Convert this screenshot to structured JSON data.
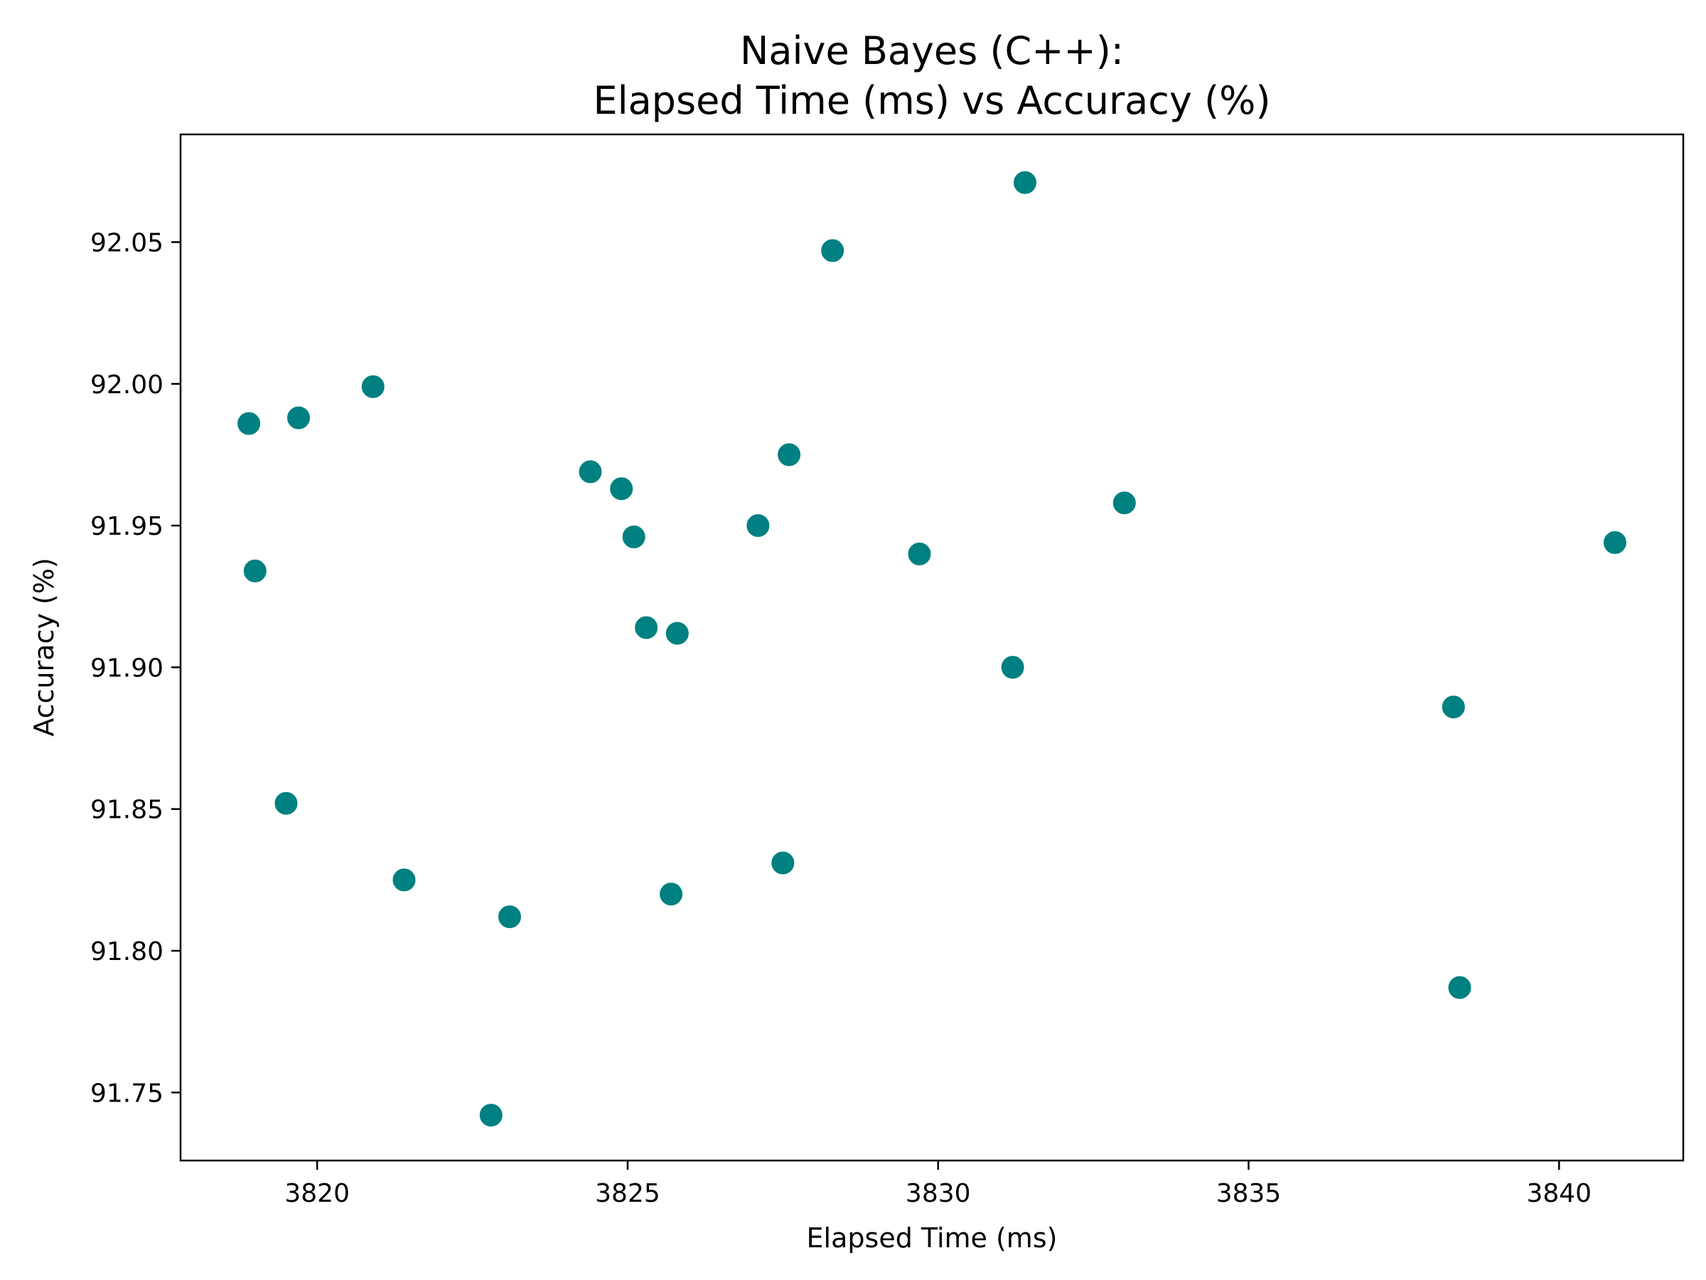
{
  "chart_data": {
    "type": "scatter",
    "title_lines": [
      "Naive Bayes (C++):",
      "Elapsed Time (ms) vs Accuracy (%)"
    ],
    "xlabel": "Elapsed Time (ms)",
    "ylabel": "Accuracy (%)",
    "xlim": [
      3817.8,
      3842.0
    ],
    "ylim": [
      91.726,
      92.088
    ],
    "xticks": [
      3820,
      3825,
      3830,
      3835,
      3840
    ],
    "xtick_labels": [
      "3820",
      "3825",
      "3830",
      "3835",
      "3840"
    ],
    "yticks": [
      91.75,
      91.8,
      91.85,
      91.9,
      91.95,
      92.0,
      92.05
    ],
    "ytick_labels": [
      "91.75",
      "91.80",
      "91.85",
      "91.90",
      "91.95",
      "92.00",
      "92.05"
    ],
    "grid": false,
    "marker_color": "#008080",
    "points": [
      {
        "x": 3818.9,
        "y": 91.986
      },
      {
        "x": 3819.0,
        "y": 91.934
      },
      {
        "x": 3819.5,
        "y": 91.852
      },
      {
        "x": 3819.7,
        "y": 91.988
      },
      {
        "x": 3820.9,
        "y": 91.999
      },
      {
        "x": 3821.4,
        "y": 91.825
      },
      {
        "x": 3822.8,
        "y": 91.742
      },
      {
        "x": 3823.1,
        "y": 91.812
      },
      {
        "x": 3824.4,
        "y": 91.969
      },
      {
        "x": 3824.9,
        "y": 91.963
      },
      {
        "x": 3825.1,
        "y": 91.946
      },
      {
        "x": 3825.3,
        "y": 91.914
      },
      {
        "x": 3825.8,
        "y": 91.912
      },
      {
        "x": 3825.7,
        "y": 91.82
      },
      {
        "x": 3827.1,
        "y": 91.95
      },
      {
        "x": 3827.5,
        "y": 91.831
      },
      {
        "x": 3827.6,
        "y": 91.975
      },
      {
        "x": 3828.3,
        "y": 92.047
      },
      {
        "x": 3829.7,
        "y": 91.94
      },
      {
        "x": 3831.2,
        "y": 91.9
      },
      {
        "x": 3831.4,
        "y": 92.071
      },
      {
        "x": 3833.0,
        "y": 91.958
      },
      {
        "x": 3838.3,
        "y": 91.886
      },
      {
        "x": 3838.4,
        "y": 91.787
      },
      {
        "x": 3840.9,
        "y": 91.944
      }
    ]
  }
}
